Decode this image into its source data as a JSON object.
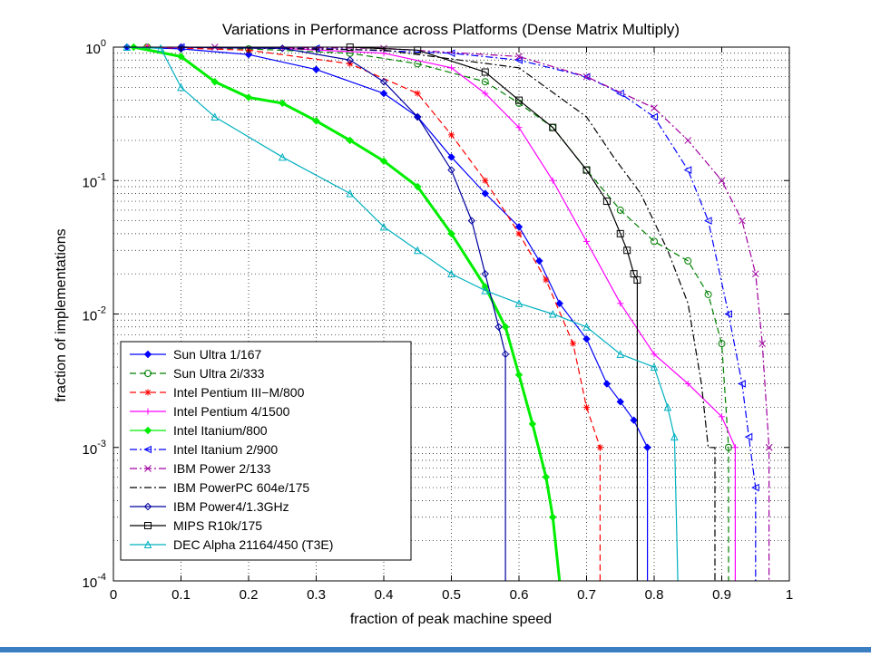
{
  "colors": {
    "axis": "#000000",
    "grid": "#000000",
    "bottom_strip": "#3a7fc1"
  },
  "chart_data": {
    "type": "line",
    "title": "Variations in Performance across Platforms (Dense Matrix Multiply)",
    "xlabel": "fraction of peak machine speed",
    "ylabel": "fraction of implementations",
    "xlim": [
      0,
      1
    ],
    "ylim": [
      0.0001,
      1
    ],
    "yscale": "log",
    "grid": true,
    "legend_position": "bottom-left",
    "x_ticks": [
      0,
      0.1,
      0.2,
      0.3,
      0.4,
      0.5,
      0.6,
      0.7,
      0.8,
      0.9,
      1
    ],
    "x_tick_labels": [
      "0",
      "0.1",
      "0.2",
      "0.3",
      "0.4",
      "0.5",
      "0.6",
      "0.7",
      "0.8",
      "0.9",
      "1"
    ],
    "y_ticks": [
      {
        "value": 1,
        "base": "10",
        "exp": "0"
      },
      {
        "value": 0.1,
        "base": "10",
        "exp": "-1"
      },
      {
        "value": 0.01,
        "base": "10",
        "exp": "-2"
      },
      {
        "value": 0.001,
        "base": "10",
        "exp": "-3"
      },
      {
        "value": 0.0001,
        "base": "10",
        "exp": "-4"
      }
    ],
    "series": [
      {
        "name": "Sun Ultra 1/167",
        "color": "#0000ff",
        "marker": "diamond-filled",
        "dash": "solid",
        "x": [
          0.02,
          0.1,
          0.2,
          0.3,
          0.4,
          0.45,
          0.5,
          0.55,
          0.6,
          0.63,
          0.66,
          0.7,
          0.73,
          0.75,
          0.77,
          0.79,
          0.79
        ],
        "y": [
          1.0,
          0.97,
          0.88,
          0.68,
          0.45,
          0.3,
          0.15,
          0.08,
          0.045,
          0.025,
          0.012,
          0.0065,
          0.003,
          0.0022,
          0.0016,
          0.001,
          0.0001
        ]
      },
      {
        "name": "Sun Ultra 2i/333",
        "color": "#008000",
        "marker": "circle-open",
        "dash": "dashed",
        "x": [
          0.05,
          0.2,
          0.35,
          0.45,
          0.55,
          0.6,
          0.65,
          0.7,
          0.75,
          0.8,
          0.85,
          0.88,
          0.9,
          0.91,
          0.91
        ],
        "y": [
          1.0,
          0.97,
          0.9,
          0.75,
          0.55,
          0.38,
          0.25,
          0.12,
          0.06,
          0.035,
          0.025,
          0.014,
          0.006,
          0.001,
          0.0001
        ]
      },
      {
        "name": "Intel Pentium III−M/800",
        "color": "#ff0000",
        "marker": "asterisk",
        "dash": "dashed",
        "x": [
          0.05,
          0.2,
          0.35,
          0.45,
          0.5,
          0.55,
          0.6,
          0.64,
          0.68,
          0.7,
          0.72,
          0.72
        ],
        "y": [
          1.0,
          0.95,
          0.75,
          0.45,
          0.22,
          0.1,
          0.04,
          0.018,
          0.006,
          0.002,
          0.001,
          0.0001
        ]
      },
      {
        "name": "Intel Pentium 4/1500",
        "color": "#ff00ff",
        "marker": "plus",
        "dash": "solid",
        "x": [
          0.05,
          0.25,
          0.4,
          0.5,
          0.55,
          0.6,
          0.65,
          0.7,
          0.75,
          0.8,
          0.85,
          0.9,
          0.92,
          0.92
        ],
        "y": [
          1.0,
          0.98,
          0.9,
          0.7,
          0.45,
          0.25,
          0.1,
          0.035,
          0.012,
          0.005,
          0.003,
          0.0017,
          0.001,
          0.0001
        ]
      },
      {
        "name": "Intel Itanium/800",
        "color": "#00ee00",
        "marker": "diamond-filled",
        "dash": "solid",
        "x": [
          0.03,
          0.1,
          0.15,
          0.2,
          0.25,
          0.3,
          0.35,
          0.4,
          0.45,
          0.5,
          0.55,
          0.58,
          0.6,
          0.62,
          0.64,
          0.65,
          0.66
        ],
        "y": [
          1.0,
          0.85,
          0.55,
          0.42,
          0.38,
          0.28,
          0.2,
          0.14,
          0.09,
          0.04,
          0.016,
          0.008,
          0.0035,
          0.0015,
          0.0006,
          0.0003,
          0.0001
        ]
      },
      {
        "name": "Intel Itanium 2/900",
        "color": "#0000ff",
        "marker": "triangle-left-open",
        "dash": "dashdot",
        "x": [
          0.1,
          0.3,
          0.5,
          0.6,
          0.7,
          0.75,
          0.8,
          0.85,
          0.88,
          0.91,
          0.93,
          0.94,
          0.95,
          0.95
        ],
        "y": [
          1.0,
          0.98,
          0.9,
          0.8,
          0.6,
          0.45,
          0.3,
          0.12,
          0.05,
          0.01,
          0.003,
          0.0012,
          0.0005,
          0.0001
        ]
      },
      {
        "name": "IBM Power 2/133",
        "color": "#a000a0",
        "marker": "x",
        "dash": "dashdot",
        "x": [
          0.15,
          0.4,
          0.6,
          0.7,
          0.8,
          0.85,
          0.9,
          0.93,
          0.95,
          0.96,
          0.97,
          0.97
        ],
        "y": [
          1.0,
          0.98,
          0.85,
          0.6,
          0.35,
          0.2,
          0.1,
          0.05,
          0.02,
          0.006,
          0.001,
          0.0001
        ]
      },
      {
        "name": "IBM PowerPC 604e/175",
        "color": "#000000",
        "marker": "none",
        "dash": "dashdot",
        "x": [
          0.1,
          0.4,
          0.6,
          0.7,
          0.74,
          0.78,
          0.82,
          0.85,
          0.87,
          0.88,
          0.89,
          0.89
        ],
        "y": [
          1.0,
          0.95,
          0.7,
          0.3,
          0.15,
          0.08,
          0.03,
          0.012,
          0.003,
          0.001,
          0.001,
          0.0001
        ]
      },
      {
        "name": "IBM Power4/1.3GHz",
        "color": "#0000a0",
        "marker": "diamond-open",
        "dash": "solid",
        "x": [
          0.1,
          0.25,
          0.35,
          0.4,
          0.45,
          0.5,
          0.53,
          0.55,
          0.57,
          0.58,
          0.58
        ],
        "y": [
          1.0,
          0.98,
          0.8,
          0.55,
          0.3,
          0.12,
          0.05,
          0.02,
          0.008,
          0.005,
          0.0001
        ]
      },
      {
        "name": "MIPS R10k/175",
        "color": "#000000",
        "marker": "square-open",
        "dash": "solid",
        "x": [
          0.35,
          0.45,
          0.55,
          0.6,
          0.65,
          0.7,
          0.73,
          0.75,
          0.76,
          0.77,
          0.775,
          0.775
        ],
        "y": [
          1.0,
          0.95,
          0.65,
          0.4,
          0.25,
          0.12,
          0.07,
          0.04,
          0.03,
          0.02,
          0.018,
          0.0001
        ]
      },
      {
        "name": "DEC Alpha 21164/450 (T3E)",
        "color": "#00b0c0",
        "marker": "triangle-up-open",
        "dash": "solid",
        "x": [
          0.02,
          0.07,
          0.1,
          0.15,
          0.25,
          0.35,
          0.4,
          0.45,
          0.5,
          0.55,
          0.6,
          0.65,
          0.7,
          0.75,
          0.8,
          0.82,
          0.83,
          0.835
        ],
        "y": [
          1.0,
          0.98,
          0.5,
          0.3,
          0.15,
          0.08,
          0.045,
          0.03,
          0.02,
          0.015,
          0.012,
          0.01,
          0.008,
          0.005,
          0.004,
          0.002,
          0.0012,
          0.0001
        ]
      }
    ]
  }
}
